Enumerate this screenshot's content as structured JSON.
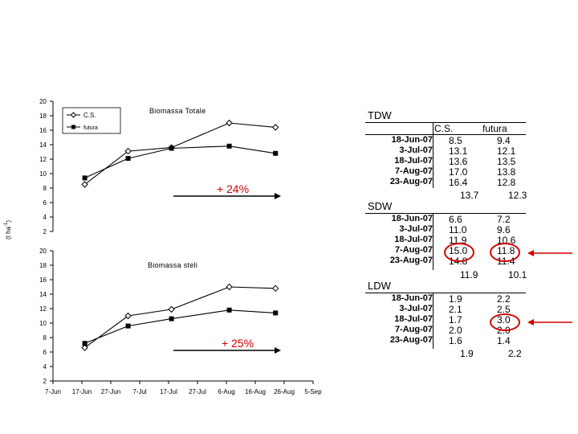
{
  "chart_data": [
    {
      "type": "line",
      "title": "Biomassa Totale",
      "categories": [
        "18-Jun",
        "3-Jul",
        "18-Jul",
        "7-Aug",
        "23-Aug"
      ],
      "x_dates": [
        "2007-06-18",
        "2007-07-03",
        "2007-07-18",
        "2007-08-07",
        "2007-08-23"
      ],
      "series": [
        {
          "name": "C.S.",
          "values": [
            8.5,
            13.1,
            13.6,
            17.0,
            16.4
          ],
          "marker": "diamond"
        },
        {
          "name": "futura",
          "values": [
            9.4,
            12.1,
            13.5,
            13.8,
            12.8
          ],
          "marker": "square"
        }
      ],
      "ylim": [
        2,
        20
      ],
      "yticks": [
        "20",
        "18",
        "16",
        "14",
        "12",
        "10",
        "8",
        "6",
        "4",
        "2"
      ],
      "annotation": "+ 24%",
      "legend": [
        "C.S.",
        "futura"
      ]
    },
    {
      "type": "line",
      "title": "Biomassa steli",
      "categories": [
        "18-Jun",
        "3-Jul",
        "18-Jul",
        "7-Aug",
        "23-Aug"
      ],
      "x_dates": [
        "2007-06-18",
        "2007-07-03",
        "2007-07-18",
        "2007-08-07",
        "2007-08-23"
      ],
      "series": [
        {
          "name": "C.S.",
          "values": [
            6.6,
            11.0,
            11.9,
            15.0,
            14.8
          ],
          "marker": "diamond"
        },
        {
          "name": "futura",
          "values": [
            7.2,
            9.6,
            10.6,
            11.8,
            11.4
          ],
          "marker": "square"
        }
      ],
      "ylim": [
        2,
        20
      ],
      "yticks": [
        "20",
        "18",
        "16",
        "14",
        "12",
        "10",
        "8",
        "6",
        "4",
        "2"
      ],
      "xticks": [
        "7-Jun",
        "17-Jun",
        "27-Jun",
        "7-Jul",
        "17-Jul",
        "27-Jul",
        "6-Aug",
        "16-Aug",
        "26-Aug",
        "5-Sep"
      ],
      "annotation": "+ 25%"
    }
  ],
  "ylabel_parts": [
    "(t ha",
    "-1",
    ")"
  ],
  "tables": [
    {
      "title": "TDW",
      "headers": [
        "C.S.",
        "futura"
      ],
      "rows": [
        {
          "date": "18-Jun-07",
          "cs": "8.5",
          "futura": "9.4"
        },
        {
          "date": "3-Jul-07",
          "cs": "13.1",
          "futura": "12.1"
        },
        {
          "date": "18-Jul-07",
          "cs": "13.6",
          "futura": "13.5"
        },
        {
          "date": "7-Aug-07",
          "cs": "17.0",
          "futura": "13.8"
        },
        {
          "date": "23-Aug-07",
          "cs": "16.4",
          "futura": "12.8"
        }
      ],
      "averages": [
        "13.7",
        "12.3"
      ]
    },
    {
      "title": "SDW",
      "rows": [
        {
          "date": "18-Jun-07",
          "cs": "6.6",
          "futura": "7.2"
        },
        {
          "date": "3-Jul-07",
          "cs": "11.0",
          "futura": "9.6"
        },
        {
          "date": "18-Jul-07",
          "cs": "11.9",
          "futura": "10.6"
        },
        {
          "date": "7-Aug-07",
          "cs": "15.0",
          "futura": "11.8"
        },
        {
          "date": "23-Aug-07",
          "cs": "14.8",
          "futura": "11.4"
        }
      ],
      "averages": [
        "11.9",
        "10.1"
      ]
    },
    {
      "title": "LDW",
      "rows": [
        {
          "date": "18-Jun-07",
          "cs": "1.9",
          "futura": "2.2"
        },
        {
          "date": "3-Jul-07",
          "cs": "2.1",
          "futura": "2.5"
        },
        {
          "date": "18-Jul-07",
          "cs": "1.7",
          "futura": "3.0"
        },
        {
          "date": "7-Aug-07",
          "cs": "2.0",
          "futura": "2.0"
        },
        {
          "date": "23-Aug-07",
          "cs": "1.6",
          "futura": "1.4"
        }
      ],
      "averages": [
        "1.9",
        "2.2"
      ]
    }
  ],
  "colors": {
    "highlight": "#d00000",
    "axis": "#000000",
    "series_line": "#000000"
  }
}
